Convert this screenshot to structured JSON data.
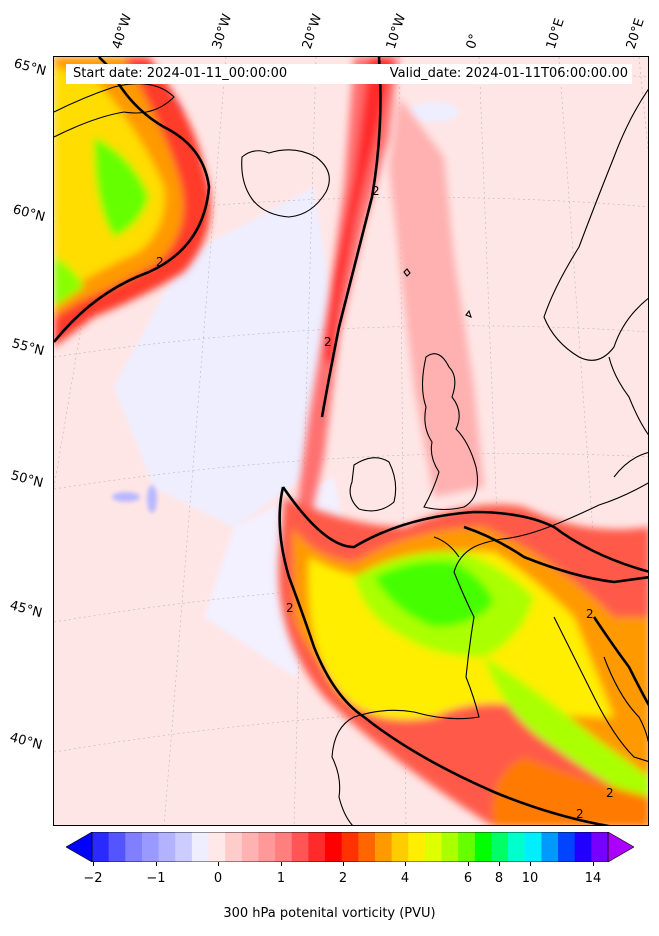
{
  "map": {
    "start_date": "Start date: 2024-01-11_00:00:00",
    "valid_date": "Valid_date: 2024-01-11T06:00:00.00",
    "lon_labels": [
      "40°W",
      "30°W",
      "20°W",
      "10°W",
      "0°",
      "10°E",
      "20°E"
    ],
    "lat_labels": [
      "65°N",
      "60°N",
      "55°N",
      "50°N",
      "45°N",
      "40°N"
    ],
    "contour_label": "2"
  },
  "colorbar": {
    "label": "300 hPa potenital vorticity (PVU)",
    "ticks": [
      "−2",
      "−1",
      "0",
      "1",
      "2",
      "4",
      "6",
      "8",
      "10",
      "14"
    ],
    "colors": [
      "#0000ff",
      "#2a2aff",
      "#5555ff",
      "#7f7fff",
      "#9999ff",
      "#b2b2ff",
      "#ccccff",
      "#eeeeff",
      "#ffe8e8",
      "#ffcccc",
      "#ffb2b2",
      "#ff9999",
      "#ff7f7f",
      "#ff5555",
      "#ff2a2a",
      "#ff0000",
      "#ff3300",
      "#ff6600",
      "#ff9900",
      "#ffcc00",
      "#ffee00",
      "#ddff00",
      "#aaff00",
      "#66ff00",
      "#00ff00",
      "#00ff66",
      "#00ffcc",
      "#00eeff",
      "#0099ff",
      "#0044ff",
      "#2200ff",
      "#7700ff",
      "#aa00ff"
    ]
  }
}
